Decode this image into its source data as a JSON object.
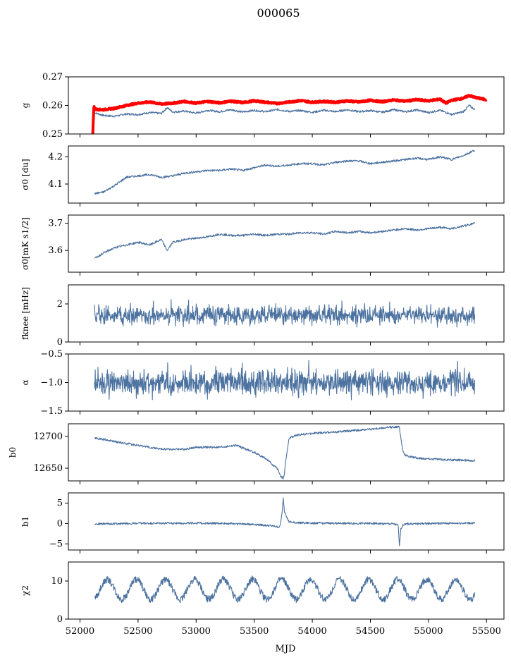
{
  "title": "000065",
  "chart_data": [
    {
      "type": "line",
      "ylabel": "g",
      "ylim": [
        0.25,
        0.27
      ],
      "yticks": [
        "0.25",
        "0.26",
        "0.27"
      ],
      "yticks_values": [
        0.25,
        0.26,
        0.27
      ],
      "series": [
        {
          "color": "#4c72a0",
          "x": [
            52125,
            52200,
            52300,
            52400,
            52500,
            52600,
            52700,
            52750,
            52800,
            52900,
            53000,
            53100,
            53200,
            53300,
            53400,
            53500,
            53600,
            53700,
            53800,
            53900,
            54000,
            54100,
            54200,
            54300,
            54400,
            54500,
            54600,
            54700,
            54800,
            54900,
            55000,
            55100,
            55200,
            55300,
            55350,
            55400
          ],
          "y": [
            0.2575,
            0.2565,
            0.2562,
            0.257,
            0.2568,
            0.2575,
            0.2572,
            0.2592,
            0.2577,
            0.258,
            0.2573,
            0.2583,
            0.2578,
            0.2585,
            0.2577,
            0.2583,
            0.2578,
            0.2586,
            0.2579,
            0.2582,
            0.2576,
            0.2583,
            0.2578,
            0.2585,
            0.2578,
            0.2582,
            0.2576,
            0.2585,
            0.2578,
            0.2584,
            0.2575,
            0.2583,
            0.2568,
            0.2578,
            0.26,
            0.2585
          ]
        },
        {
          "color": "#ff0000",
          "x": [
            52110,
            52120,
            52125,
            52140,
            52200,
            52300,
            52400,
            52500,
            52600,
            52700,
            52800,
            52900,
            53000,
            53100,
            53200,
            53300,
            53400,
            53500,
            53600,
            53700,
            53800,
            53900,
            54000,
            54100,
            54200,
            54300,
            54400,
            54500,
            54600,
            54700,
            54800,
            54900,
            55000,
            55100,
            55150,
            55200,
            55300,
            55350,
            55400,
            55500
          ],
          "y": [
            0.25,
            0.26,
            0.259,
            0.2586,
            0.2585,
            0.259,
            0.26,
            0.2608,
            0.2612,
            0.2605,
            0.2608,
            0.2614,
            0.2608,
            0.2614,
            0.2609,
            0.2615,
            0.261,
            0.2616,
            0.2611,
            0.2607,
            0.2612,
            0.2617,
            0.2611,
            0.2614,
            0.2611,
            0.2616,
            0.2612,
            0.2618,
            0.2613,
            0.2619,
            0.2615,
            0.262,
            0.2616,
            0.2622,
            0.2608,
            0.2618,
            0.2625,
            0.2635,
            0.2628,
            0.262
          ]
        }
      ]
    },
    {
      "type": "line",
      "ylabel": "σ0 [du]",
      "ylim": [
        4.03,
        4.24
      ],
      "yticks": [
        "4.1",
        "4.2"
      ],
      "yticks_values": [
        4.1,
        4.2
      ],
      "series": [
        {
          "color": "#4c72a0",
          "x": [
            52125,
            52200,
            52300,
            52400,
            52500,
            52600,
            52700,
            52800,
            52900,
            53000,
            53100,
            53200,
            53300,
            53400,
            53500,
            53600,
            53700,
            53800,
            53900,
            54000,
            54100,
            54200,
            54300,
            54400,
            54500,
            54600,
            54700,
            54800,
            54900,
            55000,
            55100,
            55200,
            55300,
            55400
          ],
          "y": [
            4.065,
            4.07,
            4.095,
            4.125,
            4.13,
            4.135,
            4.125,
            4.13,
            4.14,
            4.145,
            4.15,
            4.15,
            4.155,
            4.15,
            4.16,
            4.17,
            4.165,
            4.17,
            4.175,
            4.175,
            4.17,
            4.18,
            4.185,
            4.185,
            4.175,
            4.18,
            4.185,
            4.19,
            4.195,
            4.19,
            4.2,
            4.19,
            4.205,
            4.225
          ]
        }
      ]
    },
    {
      "type": "line",
      "ylabel": "σ0[mK s1/2]",
      "ylim": [
        3.52,
        3.73
      ],
      "yticks": [
        "3.6",
        "3.7"
      ],
      "yticks_values": [
        3.6,
        3.7
      ],
      "series": [
        {
          "color": "#4c72a0",
          "x": [
            52125,
            52200,
            52300,
            52400,
            52500,
            52600,
            52700,
            52750,
            52800,
            52900,
            53000,
            53100,
            53200,
            53300,
            53400,
            53500,
            53600,
            53700,
            53800,
            53900,
            54000,
            54100,
            54200,
            54300,
            54400,
            54500,
            54600,
            54700,
            54800,
            54900,
            55000,
            55100,
            55200,
            55300,
            55400
          ],
          "y": [
            3.57,
            3.59,
            3.61,
            3.62,
            3.63,
            3.62,
            3.64,
            3.6,
            3.63,
            3.64,
            3.645,
            3.65,
            3.66,
            3.655,
            3.655,
            3.66,
            3.655,
            3.66,
            3.66,
            3.665,
            3.665,
            3.66,
            3.67,
            3.665,
            3.67,
            3.665,
            3.67,
            3.675,
            3.68,
            3.675,
            3.68,
            3.685,
            3.68,
            3.69,
            3.7
          ]
        }
      ]
    },
    {
      "type": "line",
      "ylabel": "fknee [mHz]",
      "ylim": [
        0,
        3
      ],
      "yticks": [
        "0",
        "2"
      ],
      "yticks_values": [
        0,
        2
      ],
      "series": [
        {
          "color": "#4c72a0",
          "noise_band": [
            1.0,
            2.0
          ],
          "x_range": [
            52125,
            55400
          ],
          "mean": 1.4
        }
      ]
    },
    {
      "type": "line",
      "ylabel": "α",
      "ylim": [
        -1.5,
        -0.5
      ],
      "yticks": [
        "−1.5",
        "−1.0",
        "−0.5"
      ],
      "yticks_values": [
        -1.5,
        -1.0,
        -0.5
      ],
      "series": [
        {
          "color": "#4c72a0",
          "noise_band": [
            -1.25,
            -0.78
          ],
          "x_range": [
            52125,
            55400
          ],
          "mean": -1.0
        }
      ]
    },
    {
      "type": "line",
      "ylabel": "b0",
      "ylim": [
        12630,
        12720
      ],
      "yticks": [
        "12650",
        "12700"
      ],
      "yticks_values": [
        12650,
        12700
      ],
      "series": [
        {
          "color": "#4c72a0",
          "x": [
            52125,
            52300,
            52500,
            52700,
            52900,
            53000,
            53100,
            53200,
            53300,
            53350,
            53400,
            53500,
            53600,
            53650,
            53700,
            53730,
            53750,
            53760,
            53770,
            53800,
            53850,
            53900,
            54000,
            54200,
            54400,
            54600,
            54700,
            54750,
            54760,
            54780,
            54800,
            54900,
            55000,
            55200,
            55400
          ],
          "y": [
            12698,
            12692,
            12686,
            12680,
            12680,
            12683,
            12683,
            12683,
            12685,
            12686,
            12682,
            12675,
            12665,
            12657,
            12649,
            12637,
            12634,
            12640,
            12660,
            12697,
            12701,
            12703,
            12705,
            12707,
            12710,
            12713,
            12715,
            12715,
            12700,
            12678,
            12670,
            12666,
            12665,
            12663,
            12662
          ]
        }
      ]
    },
    {
      "type": "line",
      "ylabel": "b1",
      "ylim": [
        -6.5,
        7.5
      ],
      "yticks": [
        "−5",
        "0",
        "5"
      ],
      "yticks_values": [
        -5,
        0,
        5
      ],
      "series": [
        {
          "color": "#4c72a0",
          "x": [
            52125,
            52500,
            53000,
            53300,
            53500,
            53650,
            53720,
            53740,
            53750,
            53760,
            53770,
            53780,
            53800,
            53850,
            54000,
            54500,
            54700,
            54740,
            54750,
            54760,
            54780,
            54800,
            55000,
            55400
          ],
          "y": [
            -0.1,
            0.0,
            0.1,
            0.0,
            -0.2,
            -0.6,
            -0.9,
            2.5,
            6.5,
            3.0,
            2.6,
            1.5,
            0.4,
            0.2,
            0.1,
            0.0,
            -0.1,
            -0.5,
            -5.7,
            -1.5,
            -0.4,
            -0.1,
            0.0,
            0.1
          ]
        }
      ]
    },
    {
      "type": "line",
      "ylabel": "χ2",
      "ylim": [
        0,
        15
      ],
      "yticks": [
        "0",
        "10"
      ],
      "yticks_values": [
        0,
        10
      ],
      "series": [
        {
          "color": "#4c72a0",
          "oscillation": {
            "mean": 7.8,
            "amplitude": 2.6,
            "period_days": 250,
            "noise": 0.9
          },
          "x_range": [
            52125,
            55400
          ]
        }
      ]
    }
  ],
  "xaxis": {
    "label": "MJD",
    "xlim": [
      51900,
      55650
    ],
    "ticks": [
      "52000",
      "52500",
      "53000",
      "53500",
      "54000",
      "54500",
      "55000",
      "55500"
    ],
    "ticks_values": [
      52000,
      52500,
      53000,
      53500,
      54000,
      54500,
      55000,
      55500
    ]
  }
}
